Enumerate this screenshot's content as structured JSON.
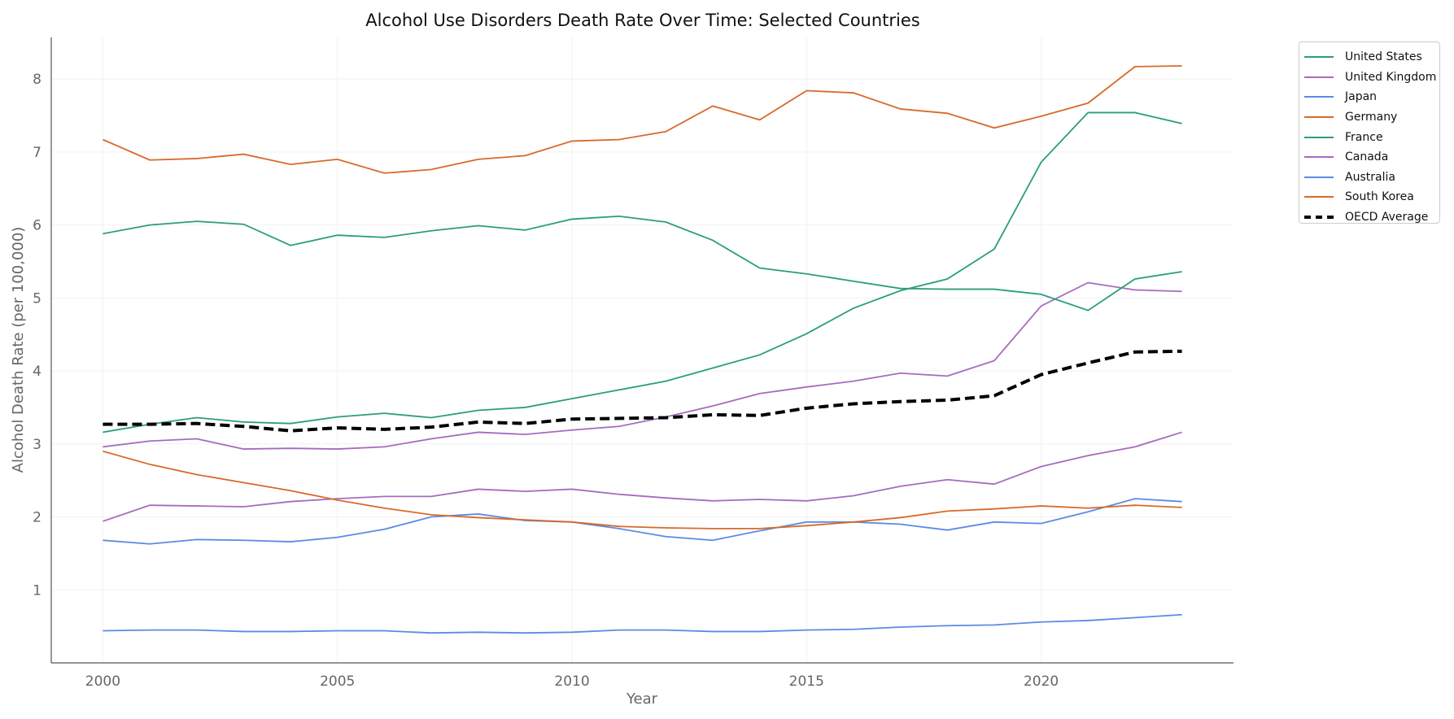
{
  "chart_data": {
    "type": "line",
    "title": "Alcohol Use Disorders Death Rate Over Time: Selected Countries",
    "xlabel": "Year",
    "ylabel": "Alcohol Death Rate (per 100,000)",
    "xlim": [
      1998.9,
      2024.1
    ],
    "ylim": [
      0,
      8.57
    ],
    "xticks": [
      2000,
      2005,
      2010,
      2015,
      2020
    ],
    "yticks": [
      1,
      2,
      3,
      4,
      5,
      6,
      7,
      8
    ],
    "grid": true,
    "legend_placement": "outside-top-right",
    "x": [
      2000,
      2001,
      2002,
      2003,
      2004,
      2005,
      2006,
      2007,
      2008,
      2009,
      2010,
      2011,
      2012,
      2013,
      2014,
      2015,
      2016,
      2017,
      2018,
      2019,
      2020,
      2021,
      2022,
      2023
    ],
    "series": [
      {
        "name": "United States",
        "color": "#2a9d7f",
        "dashed": false,
        "values": [
          3.16,
          3.27,
          3.36,
          3.3,
          3.28,
          3.37,
          3.42,
          3.36,
          3.46,
          3.5,
          3.62,
          3.74,
          3.86,
          4.04,
          4.22,
          4.51,
          4.86,
          5.1,
          5.26,
          5.67,
          6.86,
          7.54,
          7.54,
          7.39
        ]
      },
      {
        "name": "United Kingdom",
        "color": "#a66bbe",
        "dashed": false,
        "values": [
          2.96,
          3.04,
          3.07,
          2.93,
          2.94,
          2.93,
          2.96,
          3.07,
          3.16,
          3.13,
          3.19,
          3.24,
          3.37,
          3.52,
          3.69,
          3.78,
          3.86,
          3.97,
          3.93,
          4.14,
          4.89,
          5.21,
          5.11,
          5.09
        ]
      },
      {
        "name": "Japan",
        "color": "#5b8ae6",
        "dashed": false,
        "values": [
          0.44,
          0.45,
          0.45,
          0.43,
          0.43,
          0.44,
          0.44,
          0.41,
          0.42,
          0.41,
          0.42,
          0.45,
          0.45,
          0.43,
          0.43,
          0.45,
          0.46,
          0.49,
          0.51,
          0.52,
          0.56,
          0.58,
          0.62,
          0.66
        ]
      },
      {
        "name": "Germany",
        "color": "#d9692a",
        "dashed": false,
        "values": [
          7.17,
          6.89,
          6.91,
          6.97,
          6.83,
          6.9,
          6.71,
          6.76,
          6.9,
          6.95,
          7.15,
          7.17,
          7.28,
          7.63,
          7.44,
          7.84,
          7.81,
          7.59,
          7.53,
          7.33,
          7.49,
          7.67,
          8.17,
          8.18
        ]
      },
      {
        "name": "France",
        "color": "#2a9d7f",
        "dashed": false,
        "values": [
          5.88,
          6.0,
          6.05,
          6.01,
          5.72,
          5.86,
          5.83,
          5.92,
          5.99,
          5.93,
          6.08,
          6.12,
          6.04,
          5.79,
          5.41,
          5.33,
          5.23,
          5.13,
          5.12,
          5.12,
          5.05,
          4.83,
          5.26,
          5.36
        ]
      },
      {
        "name": "Canada",
        "color": "#a66bbe",
        "dashed": false,
        "values": [
          1.94,
          2.16,
          2.15,
          2.14,
          2.21,
          2.25,
          2.28,
          2.28,
          2.38,
          2.35,
          2.38,
          2.31,
          2.26,
          2.22,
          2.24,
          2.22,
          2.29,
          2.42,
          2.51,
          2.45,
          2.69,
          2.84,
          2.96,
          3.16
        ]
      },
      {
        "name": "Australia",
        "color": "#5b8ae6",
        "dashed": false,
        "values": [
          1.68,
          1.63,
          1.69,
          1.68,
          1.66,
          1.72,
          1.83,
          2.0,
          2.04,
          1.95,
          1.93,
          1.84,
          1.73,
          1.68,
          1.81,
          1.93,
          1.93,
          1.9,
          1.82,
          1.93,
          1.91,
          2.07,
          2.25,
          2.21
        ]
      },
      {
        "name": "South Korea",
        "color": "#d9692a",
        "dashed": false,
        "values": [
          2.9,
          2.72,
          2.58,
          2.47,
          2.36,
          2.23,
          2.12,
          2.03,
          1.99,
          1.96,
          1.93,
          1.87,
          1.85,
          1.84,
          1.84,
          1.88,
          1.93,
          1.99,
          2.08,
          2.11,
          2.15,
          2.12,
          2.16,
          2.13
        ]
      },
      {
        "name": "OECD Average",
        "color": "#000000",
        "dashed": true,
        "values": [
          3.27,
          3.27,
          3.28,
          3.24,
          3.18,
          3.22,
          3.2,
          3.23,
          3.3,
          3.28,
          3.34,
          3.35,
          3.36,
          3.4,
          3.39,
          3.49,
          3.55,
          3.58,
          3.6,
          3.66,
          3.95,
          4.11,
          4.26,
          4.27
        ]
      }
    ]
  }
}
